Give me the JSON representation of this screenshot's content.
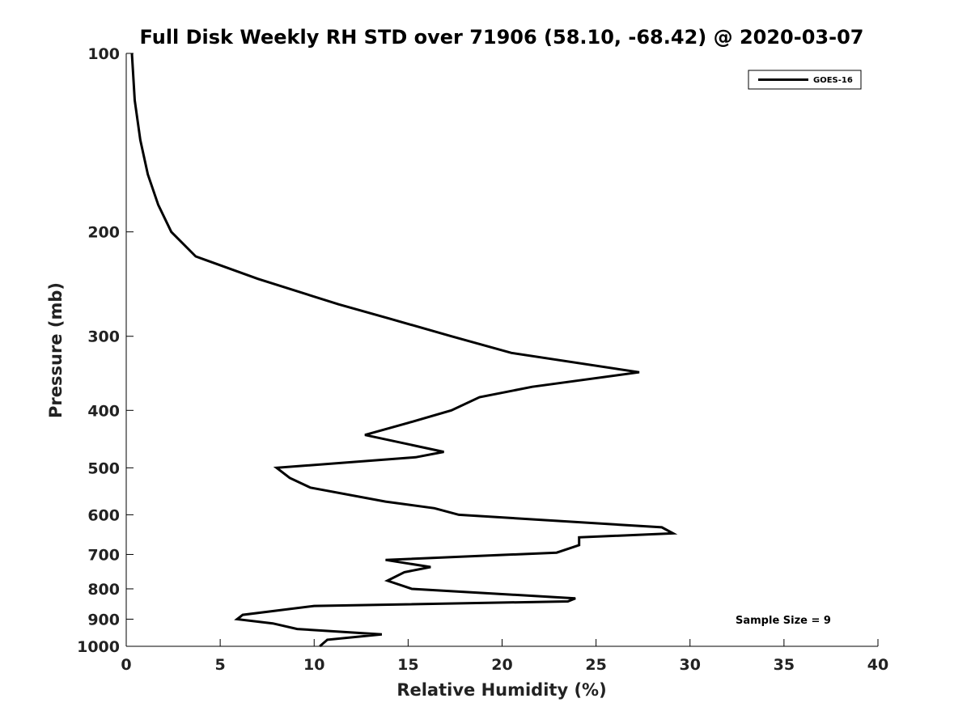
{
  "chart_data": {
    "type": "line",
    "title": "Full Disk Weekly RH STD over 71906 (58.10, -68.42) @ 2020-03-07",
    "xlabel": "Relative Humidity (%)",
    "ylabel": "Pressure (mb)",
    "xlim": [
      0,
      40
    ],
    "ylim": [
      100,
      1000
    ],
    "yscale": "log",
    "y_reversed": true,
    "xticks": [
      0,
      5,
      10,
      15,
      20,
      25,
      30,
      35,
      40
    ],
    "xtick_labels": [
      "0",
      "5",
      "10",
      "15",
      "20",
      "25",
      "30",
      "35",
      "40"
    ],
    "yticks": [
      100,
      200,
      300,
      400,
      500,
      600,
      700,
      800,
      900,
      1000
    ],
    "ytick_labels": [
      "100",
      "200",
      "300",
      "400",
      "500",
      "600",
      "700",
      "800",
      "900",
      "1000"
    ],
    "grid": false,
    "legend_position": "top-right",
    "series": [
      {
        "name": "GOES-16",
        "color": "#000000",
        "x": [
          0.3,
          0.45,
          0.75,
          1.15,
          1.7,
          2.4,
          3.7,
          7.0,
          11.3,
          14.0,
          17.3,
          20.5,
          27.3,
          21.6,
          18.8,
          17.3,
          15.0,
          12.7,
          16.9,
          15.4,
          8.0,
          8.7,
          9.8,
          13.8,
          16.4,
          17.7,
          28.5,
          29.1,
          24.1,
          24.1,
          22.9,
          13.8,
          16.2,
          14.8,
          13.9,
          15.2,
          23.9,
          23.5,
          10.0,
          6.2,
          5.9,
          7.8,
          9.1,
          13.6,
          10.7,
          10.3
        ],
        "y": [
          100,
          120,
          140,
          160,
          180,
          200,
          220,
          240,
          265,
          280,
          300,
          320,
          345,
          365,
          380,
          400,
          420,
          440,
          470,
          480,
          500,
          520,
          540,
          570,
          585,
          600,
          630,
          645,
          655,
          675,
          695,
          715,
          735,
          750,
          775,
          800,
          830,
          840,
          855,
          885,
          900,
          915,
          935,
          955,
          975,
          1000
        ]
      }
    ],
    "annotations": [
      {
        "text": "Sample Size = 9"
      }
    ]
  }
}
